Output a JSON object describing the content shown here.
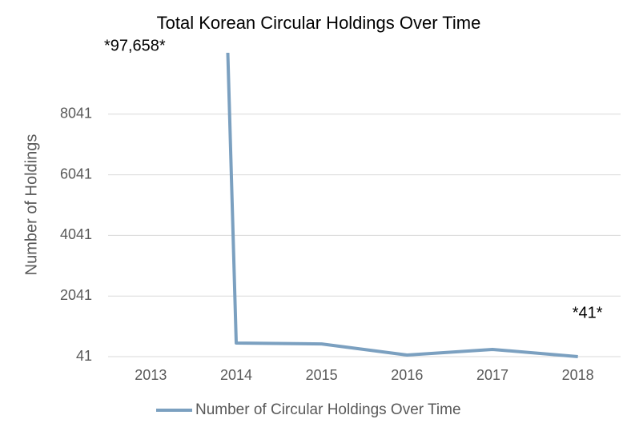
{
  "chart_data": {
    "type": "line",
    "title": "Total Korean Circular Holdings Over Time",
    "y_label": "Number of Holdings",
    "categories": [
      "2013",
      "2014",
      "2015",
      "2016",
      "2017",
      "2018"
    ],
    "series": [
      {
        "name": "Number of Circular Holdings Over Time",
        "color": "#7ba0c0",
        "values": [
          97658,
          490,
          460,
          94,
          279,
          41
        ],
        "value_labels": [
          "*97,658*",
          null,
          null,
          null,
          null,
          "*41*"
        ]
      }
    ],
    "ylim": [
      41,
      10041
    ],
    "yticks": [
      41,
      2041,
      4041,
      6041,
      8041
    ],
    "grid": true,
    "legend": "bottom"
  }
}
